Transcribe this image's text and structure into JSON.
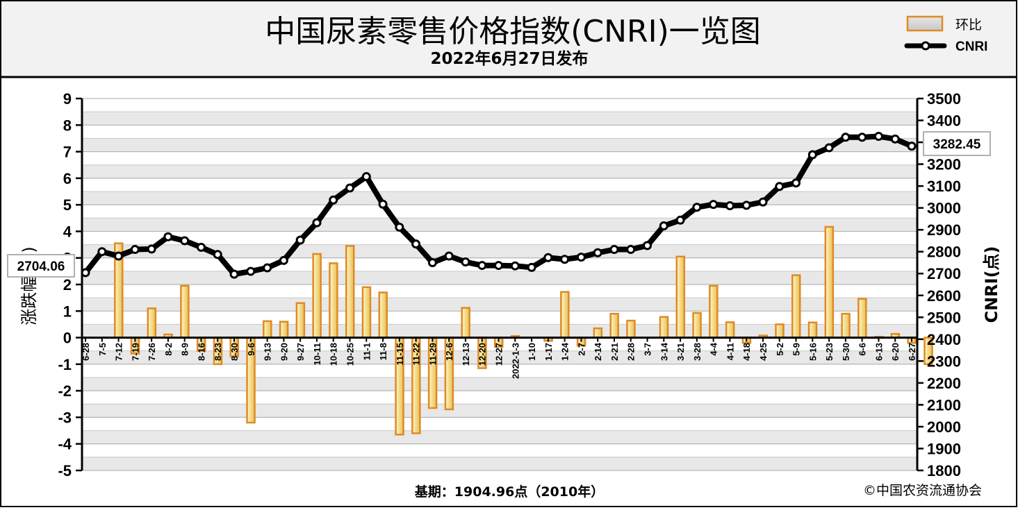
{
  "header": {
    "title": "中国尿素零售价格指数(CNRI)一览图",
    "subtitle": "2022年6月27日发布"
  },
  "legend": {
    "bar_label": "环比",
    "line_label": "CNRI"
  },
  "footer": {
    "base": "基期：1904.96点（2010年）",
    "source": "©中国农资流通协会"
  },
  "callouts": {
    "start_value": "2704.06",
    "end_value": "3282.45"
  },
  "colors": {
    "bar_fill": "#f1d985",
    "bar_stroke": "#df8a26",
    "line": "#000000",
    "grid_band": "#e8e8e8",
    "header_bg": "#f2f2f2"
  },
  "chart_data": {
    "type": "bar",
    "title": "中国尿素零售价格指数(CNRI)一览图",
    "subtitle": "2022年6月27日发布",
    "categories": [
      "6-28",
      "7-5",
      "7-12",
      "7-19",
      "7-26",
      "8-2",
      "8-9",
      "8-16",
      "8-23",
      "8-30",
      "9-6",
      "9-13",
      "9-20",
      "9-27",
      "10-11",
      "10-18",
      "10-25",
      "11-1",
      "11-8",
      "11-15",
      "11-22",
      "11-29",
      "12-6",
      "12-13",
      "12-20",
      "12-27",
      "2022-1-3",
      "1-10",
      "1-17",
      "1-24",
      "2-7",
      "2-14",
      "2-21",
      "2-28",
      "3-7",
      "3-14",
      "3-21",
      "3-28",
      "4-4",
      "4-11",
      "4-18",
      "4-25",
      "5-2",
      "5-9",
      "5-16",
      "5-23",
      "5-30",
      "6-6",
      "6-13",
      "6-20",
      "6-27"
    ],
    "series": [
      {
        "name": "环比",
        "type": "bar",
        "axis": "left",
        "values": [
          0.0,
          3.55,
          -0.6,
          1.1,
          0.12,
          1.95,
          -0.5,
          -1.0,
          -0.7,
          -3.2,
          0.62,
          0.6,
          1.3,
          3.15,
          2.8,
          3.45,
          1.9,
          1.7,
          -3.65,
          -3.6,
          -2.65,
          -2.7,
          1.12,
          -1.15,
          -0.35,
          0.06,
          0.0,
          -0.12,
          1.72,
          -0.3,
          0.35,
          0.9,
          0.64,
          0.0,
          0.78,
          3.05,
          0.93,
          1.95,
          0.58,
          -0.2,
          0.08,
          0.5,
          2.35,
          0.57,
          4.17,
          0.9,
          1.46,
          0.03,
          0.14,
          -0.2,
          -1.0
        ]
      },
      {
        "name": "CNRI",
        "type": "line",
        "axis": "right",
        "values": [
          2704.06,
          2800,
          2780,
          2810,
          2812,
          2868,
          2850,
          2820,
          2787,
          2697,
          2710,
          2726,
          2760,
          2853,
          2932,
          3036,
          3091,
          3143,
          3017,
          2912,
          2835,
          2750,
          2780,
          2753,
          2737,
          2737,
          2735,
          2728,
          2773,
          2765,
          2775,
          2795,
          2810,
          2810,
          2828,
          2918,
          2944,
          3003,
          3016,
          3010,
          3012,
          3027,
          3098,
          3114,
          3243,
          3275,
          3323,
          3323,
          3327,
          3315,
          3282.45
        ]
      }
    ],
    "ylabel": "涨跌幅(%)",
    "ylabel_right": "CNRI(点)",
    "ylim": [
      -5,
      9
    ],
    "ylim_right": [
      1800,
      3500
    ],
    "yticks": [
      "9",
      "8",
      "7",
      "6",
      "5",
      "4",
      "3",
      "2",
      "1",
      "0",
      "-1",
      "-2",
      "-3",
      "-4",
      "-5"
    ],
    "yticks_right": [
      "3500",
      "3400",
      "3300",
      "3200",
      "3100",
      "3000",
      "2900",
      "2800",
      "2700",
      "2600",
      "2500",
      "2400",
      "2300",
      "2200",
      "2100",
      "2000",
      "1900",
      "1800"
    ],
    "grid": true,
    "legend_position": "top-right"
  }
}
